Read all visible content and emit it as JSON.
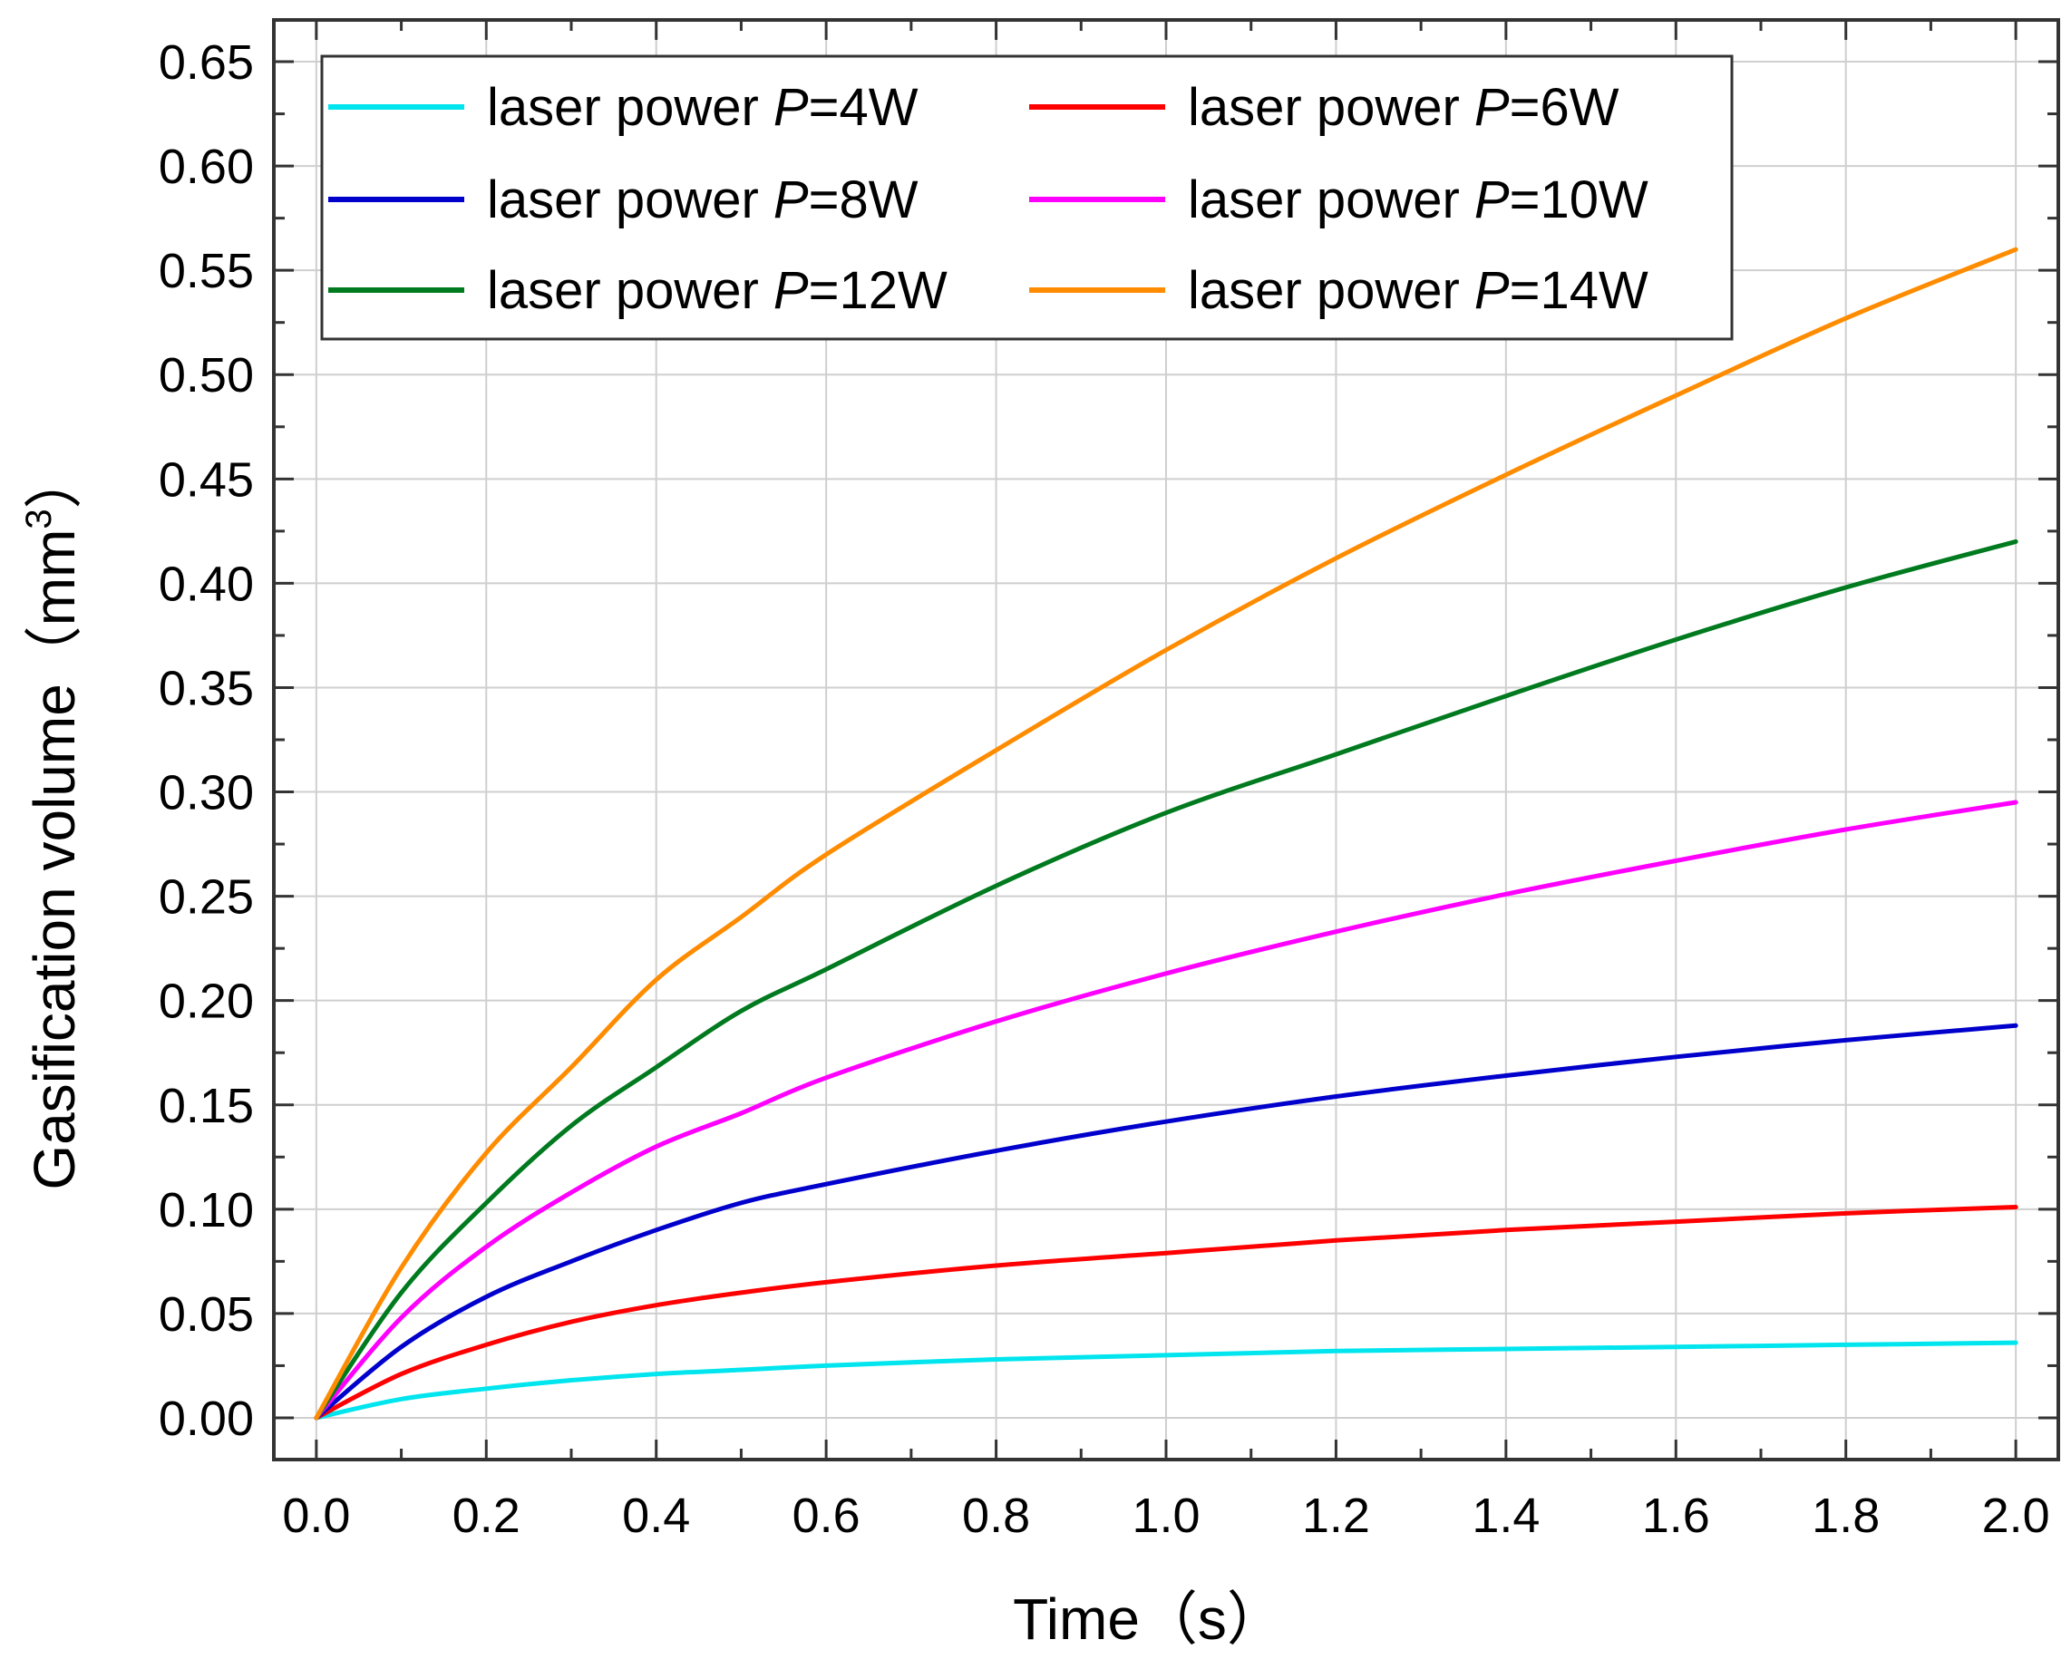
{
  "chart_data": {
    "type": "line",
    "xlabel": "Time（s）",
    "ylabel_main": "Gasification volume（mm",
    "ylabel_sup": "3",
    "ylabel_tail": "）",
    "xlim": [
      -0.05,
      2.05
    ],
    "ylim": [
      -0.02,
      0.67
    ],
    "xticks": [
      0.0,
      0.2,
      0.4,
      0.6,
      0.8,
      1.0,
      1.2,
      1.4,
      1.6,
      1.8,
      2.0
    ],
    "xtick_labels": [
      "0.0",
      "0.2",
      "0.4",
      "0.6",
      "0.8",
      "1.0",
      "1.2",
      "1.4",
      "1.6",
      "1.8",
      "2.0"
    ],
    "yticks": [
      0.0,
      0.05,
      0.1,
      0.15,
      0.2,
      0.25,
      0.3,
      0.35,
      0.4,
      0.45,
      0.5,
      0.55,
      0.6,
      0.65
    ],
    "ytick_labels": [
      "0.00",
      "0.05",
      "0.10",
      "0.15",
      "0.20",
      "0.25",
      "0.30",
      "0.35",
      "0.40",
      "0.45",
      "0.50",
      "0.55",
      "0.60",
      "0.65"
    ],
    "grid": true,
    "legend_position": "top-left",
    "series": [
      {
        "name_prefix": "laser power ",
        "name_var": "P",
        "name_suffix": "=4W",
        "color": "#00e5ee",
        "x": [
          0,
          0.1,
          0.2,
          0.3,
          0.4,
          0.5,
          0.6,
          0.8,
          1.0,
          1.2,
          1.4,
          1.6,
          1.8,
          2.0
        ],
        "y": [
          0,
          0.009,
          0.014,
          0.018,
          0.021,
          0.023,
          0.025,
          0.028,
          0.03,
          0.032,
          0.033,
          0.034,
          0.035,
          0.036
        ]
      },
      {
        "name_prefix": "laser power ",
        "name_var": "P",
        "name_suffix": "=6W",
        "color": "#ff0000",
        "x": [
          0,
          0.1,
          0.2,
          0.3,
          0.4,
          0.5,
          0.6,
          0.8,
          1.0,
          1.2,
          1.4,
          1.6,
          1.8,
          2.0
        ],
        "y": [
          0,
          0.021,
          0.035,
          0.046,
          0.054,
          0.06,
          0.065,
          0.073,
          0.079,
          0.085,
          0.09,
          0.094,
          0.098,
          0.101
        ]
      },
      {
        "name_prefix": "laser power ",
        "name_var": "P",
        "name_suffix": "=8W",
        "color": "#0000cc",
        "x": [
          0,
          0.1,
          0.2,
          0.3,
          0.4,
          0.5,
          0.6,
          0.8,
          1.0,
          1.2,
          1.4,
          1.6,
          1.8,
          2.0
        ],
        "y": [
          0,
          0.034,
          0.058,
          0.075,
          0.09,
          0.103,
          0.112,
          0.128,
          0.142,
          0.154,
          0.164,
          0.173,
          0.181,
          0.188
        ]
      },
      {
        "name_prefix": "laser power ",
        "name_var": "P",
        "name_suffix": "=10W",
        "color": "#ff00ff",
        "x": [
          0,
          0.1,
          0.2,
          0.3,
          0.4,
          0.5,
          0.6,
          0.8,
          1.0,
          1.2,
          1.4,
          1.6,
          1.8,
          2.0
        ],
        "y": [
          0,
          0.048,
          0.082,
          0.108,
          0.13,
          0.146,
          0.163,
          0.19,
          0.213,
          0.233,
          0.251,
          0.267,
          0.282,
          0.295
        ]
      },
      {
        "name_prefix": "laser power ",
        "name_var": "P",
        "name_suffix": "=12W",
        "color": "#007a1f",
        "x": [
          0,
          0.1,
          0.2,
          0.3,
          0.4,
          0.5,
          0.6,
          0.8,
          1.0,
          1.2,
          1.4,
          1.6,
          1.8,
          2.0
        ],
        "y": [
          0,
          0.06,
          0.103,
          0.14,
          0.168,
          0.195,
          0.215,
          0.255,
          0.29,
          0.318,
          0.346,
          0.373,
          0.398,
          0.42
        ]
      },
      {
        "name_prefix": "laser power ",
        "name_var": "P",
        "name_suffix": "=14W",
        "color": "#ff8c00",
        "x": [
          0,
          0.1,
          0.2,
          0.3,
          0.4,
          0.5,
          0.6,
          0.8,
          1.0,
          1.2,
          1.4,
          1.6,
          1.8,
          2.0
        ],
        "y": [
          0,
          0.072,
          0.127,
          0.168,
          0.21,
          0.24,
          0.27,
          0.32,
          0.368,
          0.412,
          0.452,
          0.49,
          0.527,
          0.56
        ]
      }
    ]
  }
}
